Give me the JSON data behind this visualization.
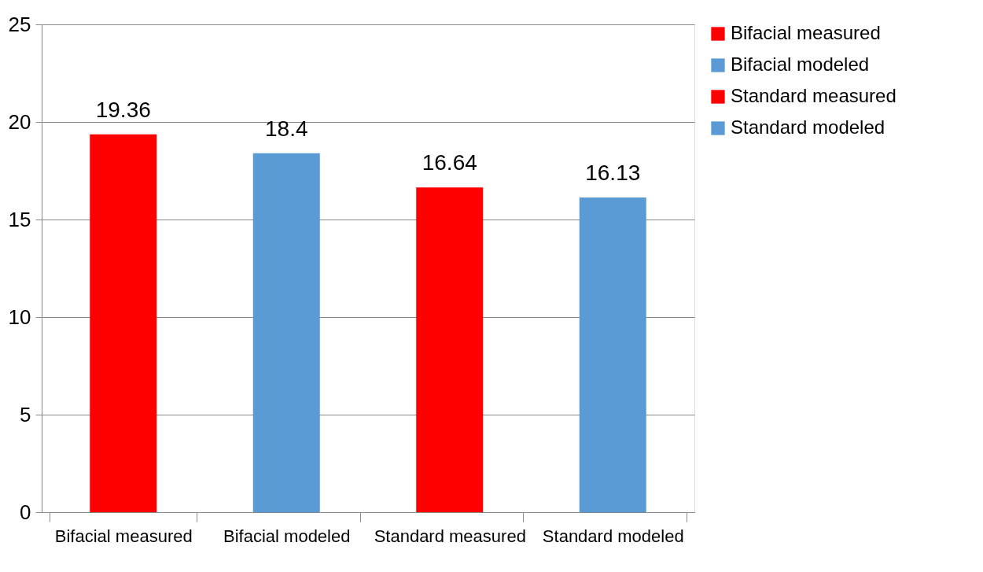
{
  "chart_data": {
    "type": "bar",
    "categories": [
      "Bifacial measured",
      "Bifacial  modeled",
      "Standard measured",
      "Standard modeled"
    ],
    "series": [
      {
        "name": "Bifacial  measured",
        "color": "#ff0000",
        "values": [
          19.36,
          null,
          null,
          null
        ]
      },
      {
        "name": "Bifacial  modeled",
        "color": "#5b9bd5",
        "values": [
          null,
          18.4,
          null,
          null
        ]
      },
      {
        "name": "Standard  measured",
        "color": "#ff0000",
        "values": [
          null,
          null,
          16.64,
          null
        ]
      },
      {
        "name": "Standard  modeled",
        "color": "#5b9bd5",
        "values": [
          null,
          null,
          null,
          16.13
        ]
      }
    ],
    "ylim": [
      0,
      25
    ],
    "yticks": [
      0,
      5,
      10,
      15,
      20,
      25
    ],
    "grid": "y",
    "legend": "right",
    "data_labels": true
  }
}
